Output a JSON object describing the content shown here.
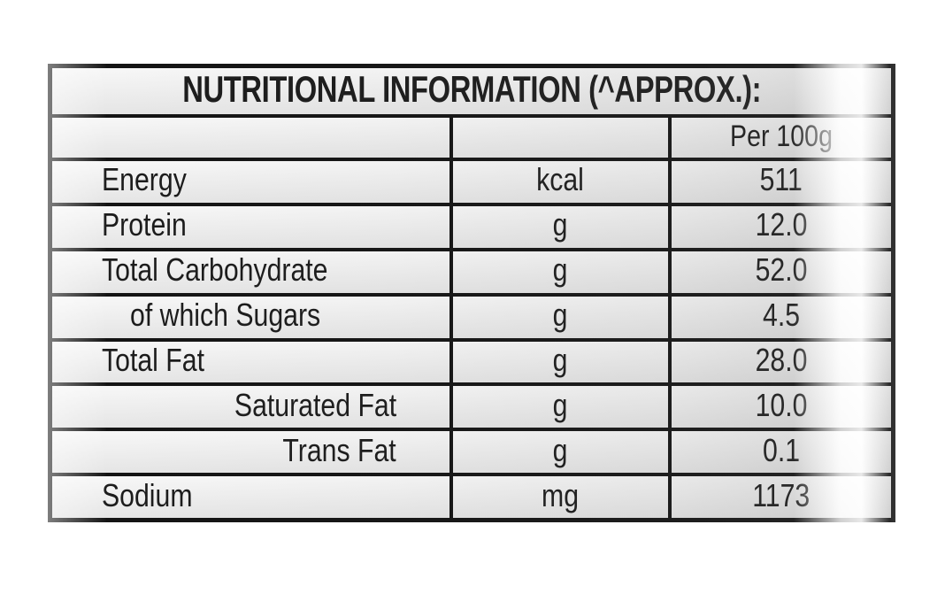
{
  "page": {
    "background_color": "#ffffff"
  },
  "table": {
    "title": "NUTRITIONAL INFORMATION (^APPROX.):",
    "header": {
      "col1": "",
      "col2": "",
      "col3": "Per 100g"
    },
    "rows": [
      {
        "label": "Energy",
        "unit": "kcal",
        "per_100g": "511",
        "indent": "normal"
      },
      {
        "label": "Protein",
        "unit": "g",
        "per_100g": "12.0",
        "indent": "normal"
      },
      {
        "label": "Total Carbohydrate",
        "unit": "g",
        "per_100g": "52.0",
        "indent": "normal"
      },
      {
        "label": "of which Sugars",
        "unit": "g",
        "per_100g": "4.5",
        "indent": "sub"
      },
      {
        "label": "Total Fat",
        "unit": "g",
        "per_100g": "28.0",
        "indent": "normal"
      },
      {
        "label": "Saturated Fat",
        "unit": "g",
        "per_100g": "10.0",
        "indent": "right"
      },
      {
        "label": "Trans Fat",
        "unit": "g",
        "per_100g": "0.1",
        "indent": "right"
      },
      {
        "label": "Sodium",
        "unit": "mg",
        "per_100g": "1173",
        "indent": "normal"
      }
    ],
    "colors": {
      "border": "#141414",
      "text": "#1c1c1c",
      "cell_top": "#f7f7f7",
      "cell_bottom": "#e5e5e5"
    }
  }
}
